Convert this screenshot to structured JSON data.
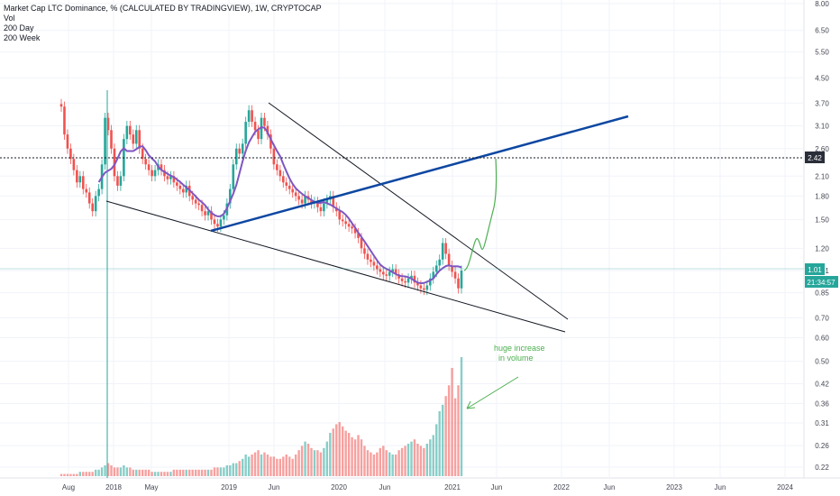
{
  "legend": {
    "title": "Market Cap LTC Dominance, % (CALCULATED BY TRADINGVIEW), 1W, CRYPTOCAP",
    "items": [
      "Vol",
      "200 Day",
      "200 Week"
    ]
  },
  "colors": {
    "up": "#26a69a",
    "down": "#ef5350",
    "ma": "#7e57c2",
    "trend_blue": "#0d47a1",
    "projection": "#4caf50",
    "tag_bg": "#2a2e39",
    "price_tag_bg": "#26a69a",
    "crosshair": "#26a69a"
  },
  "chart_data": {
    "type": "candlestick",
    "title": "Market Cap LTC Dominance, % (CALCULATED BY TRADINGVIEW), 1W, CRYPTOCAP",
    "y_scale": "log",
    "y_ticks": [
      "8.00",
      "6.50",
      "5.50",
      "4.50",
      "3.70",
      "3.10",
      "2.60",
      "2.10",
      "1.80",
      "1.50",
      "1.20",
      "1.01",
      "0.85",
      "0.70",
      "0.60",
      "0.50",
      "0.42",
      "0.36",
      "0.31",
      "0.26",
      "0.22"
    ],
    "x_ticks": [
      "Aug",
      "2018",
      "May",
      "2019",
      "Jun",
      "2020",
      "Jun",
      "2021",
      "Jun",
      "2022",
      "Jun",
      "2023",
      "Jun",
      "2024"
    ],
    "last_price": "1.01",
    "countdown": "21:34:57",
    "level_tag": "2.42",
    "close_series": [
      3.6,
      2.9,
      2.6,
      2.4,
      2.2,
      2.0,
      2.1,
      1.9,
      1.85,
      1.7,
      1.6,
      1.8,
      1.9,
      2.3,
      3.3,
      3.0,
      2.6,
      2.1,
      1.95,
      2.1,
      2.8,
      3.1,
      2.9,
      2.7,
      3.0,
      2.6,
      2.4,
      2.3,
      2.2,
      2.1,
      2.2,
      2.3,
      2.2,
      2.1,
      2.05,
      2.1,
      2.0,
      1.95,
      1.9,
      1.85,
      1.95,
      1.8,
      1.75,
      1.7,
      1.68,
      1.6,
      1.55,
      1.6,
      1.5,
      1.45,
      1.42,
      1.5,
      1.55,
      1.7,
      1.9,
      2.3,
      2.6,
      2.5,
      2.7,
      3.2,
      3.5,
      3.2,
      3.0,
      2.8,
      3.3,
      3.1,
      2.9,
      2.6,
      2.3,
      2.2,
      2.1,
      2.0,
      1.95,
      1.9,
      1.85,
      1.8,
      1.75,
      1.7,
      1.8,
      1.75,
      1.7,
      1.72,
      1.65,
      1.6,
      1.7,
      1.75,
      1.8,
      1.65,
      1.6,
      1.5,
      1.48,
      1.45,
      1.42,
      1.4,
      1.35,
      1.3,
      1.2,
      1.15,
      1.1,
      1.08,
      1.05,
      1.02,
      1.0,
      0.98,
      0.97,
      1.0,
      1.02,
      0.98,
      0.95,
      0.93,
      0.92,
      0.95,
      0.97,
      0.92,
      0.9,
      0.88,
      0.87,
      0.9,
      0.95,
      1.0,
      1.05,
      1.1,
      1.25,
      1.15,
      1.05,
      1.0,
      0.95,
      0.88,
      1.01
    ],
    "volume_series": [
      0.01,
      0.01,
      0.01,
      0.01,
      0.01,
      0.01,
      0.02,
      0.02,
      0.02,
      0.02,
      0.02,
      0.03,
      0.03,
      0.04,
      0.05,
      0.06,
      0.05,
      0.04,
      0.04,
      0.04,
      0.05,
      0.04,
      0.04,
      0.03,
      0.03,
      0.03,
      0.03,
      0.03,
      0.03,
      0.02,
      0.02,
      0.02,
      0.02,
      0.02,
      0.02,
      0.02,
      0.03,
      0.03,
      0.03,
      0.03,
      0.03,
      0.03,
      0.03,
      0.03,
      0.03,
      0.03,
      0.03,
      0.03,
      0.03,
      0.04,
      0.04,
      0.04,
      0.04,
      0.05,
      0.05,
      0.06,
      0.06,
      0.07,
      0.08,
      0.1,
      0.09,
      0.1,
      0.11,
      0.12,
      0.1,
      0.11,
      0.1,
      0.09,
      0.09,
      0.08,
      0.08,
      0.09,
      0.1,
      0.09,
      0.08,
      0.1,
      0.12,
      0.14,
      0.16,
      0.15,
      0.13,
      0.12,
      0.12,
      0.11,
      0.13,
      0.16,
      0.2,
      0.22,
      0.24,
      0.25,
      0.23,
      0.21,
      0.2,
      0.18,
      0.17,
      0.19,
      0.17,
      0.14,
      0.12,
      0.11,
      0.1,
      0.11,
      0.13,
      0.14,
      0.12,
      0.11,
      0.1,
      0.1,
      0.12,
      0.13,
      0.14,
      0.15,
      0.16,
      0.17,
      0.15,
      0.14,
      0.13,
      0.15,
      0.17,
      0.19,
      0.24,
      0.3,
      0.33,
      0.37,
      0.42,
      0.5,
      0.36,
      0.42,
      0.55
    ]
  },
  "annotation": {
    "line1": "huge increase",
    "line2": "in volume"
  }
}
